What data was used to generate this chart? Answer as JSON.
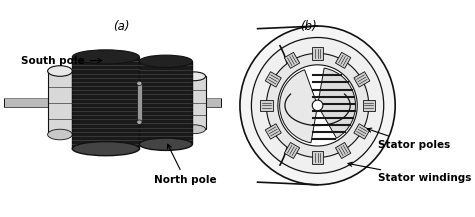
{
  "bg_color": "#ffffff",
  "labels": {
    "north_pole": "North pole",
    "south_pole": "South pole",
    "label_a": "(a)",
    "label_b": "(b)",
    "stator_windings": "Stator windings",
    "stator_poles": "Stator poles"
  },
  "font_size": 7.5,
  "line_color": "#111111",
  "dark": "#1a1a1a",
  "mid_gray": "#888888",
  "light_gray": "#cccccc",
  "white": "#ffffff",
  "tooth_stripe": "#555555"
}
